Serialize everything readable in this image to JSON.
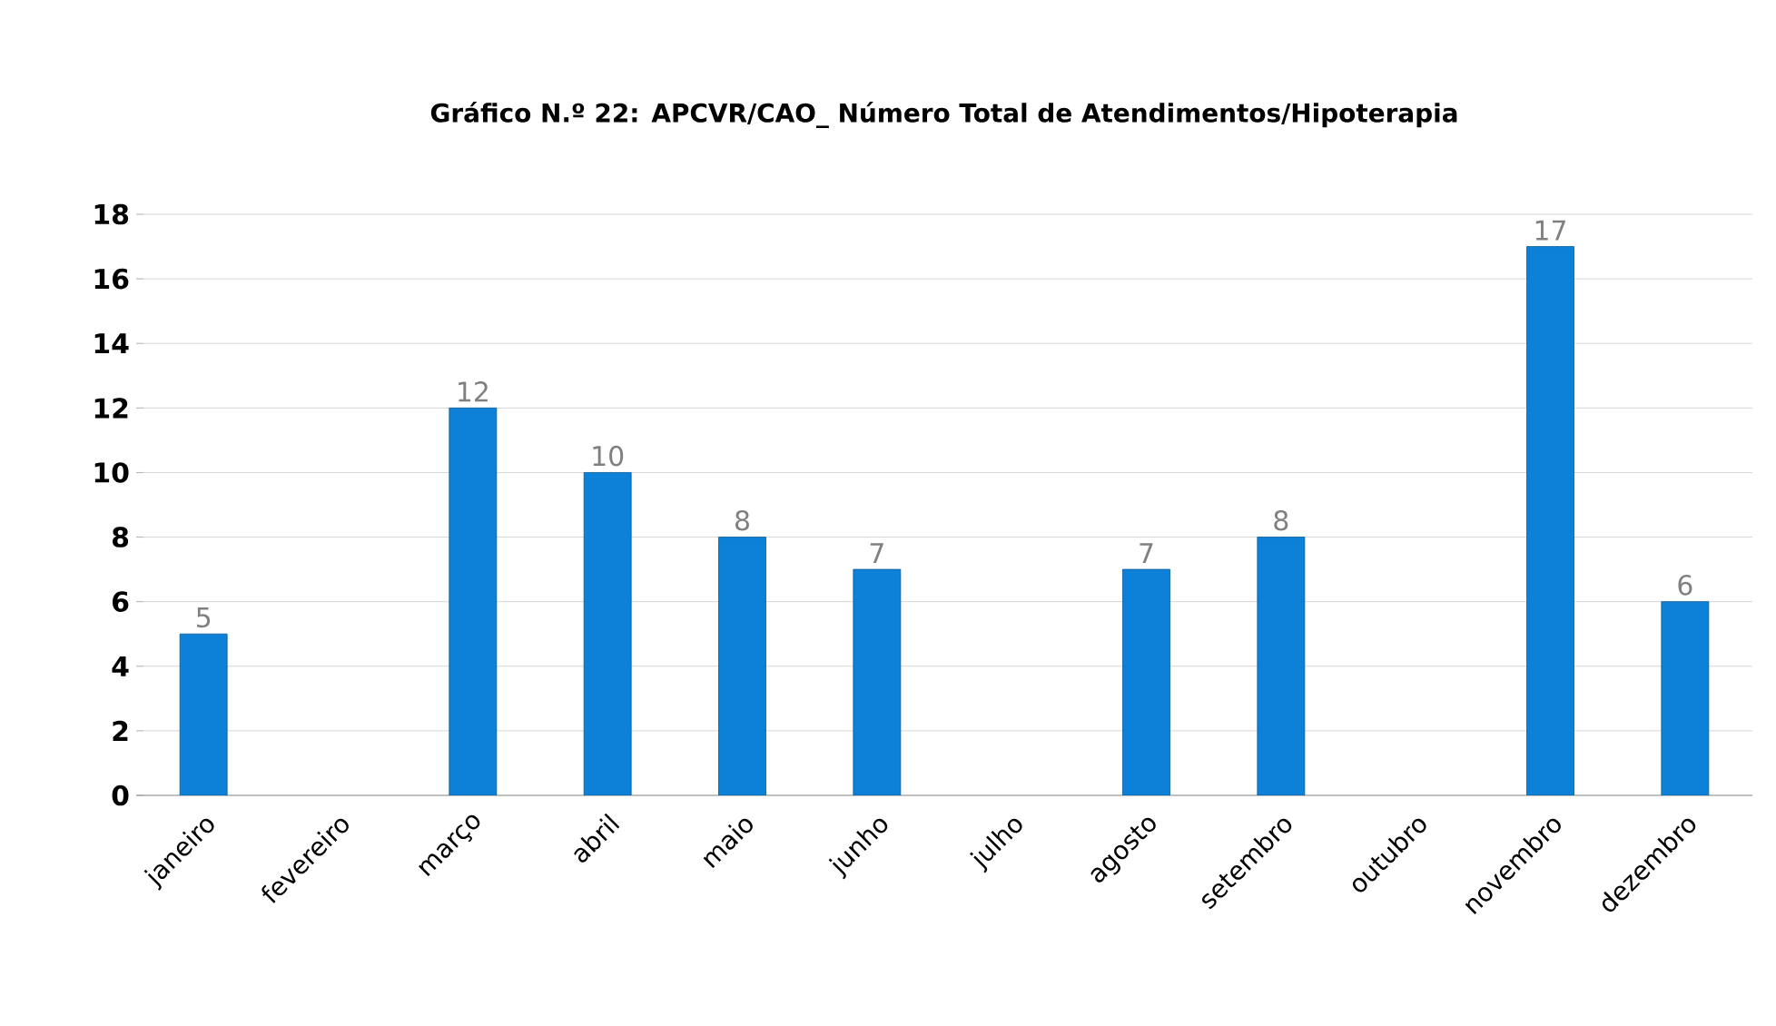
{
  "chart_data": {
    "type": "bar",
    "title": "Gráfico N.º 22: APCVR/CAO_ Número Total de Atendimentos/Hipoterapia",
    "categories": [
      "janeiro",
      "fevereiro",
      "março",
      "abril",
      "maio",
      "junho",
      "julho",
      "agosto",
      "setembro",
      "outubro",
      "novembro",
      "dezembro"
    ],
    "values": [
      5,
      null,
      12,
      10,
      8,
      7,
      null,
      7,
      8,
      null,
      17,
      6
    ],
    "color": "#0d80d8",
    "ylim": [
      0,
      18
    ],
    "yticks": [
      0,
      2,
      4,
      6,
      8,
      10,
      12,
      14,
      16,
      18
    ],
    "grid": "y",
    "data_labels": true
  }
}
